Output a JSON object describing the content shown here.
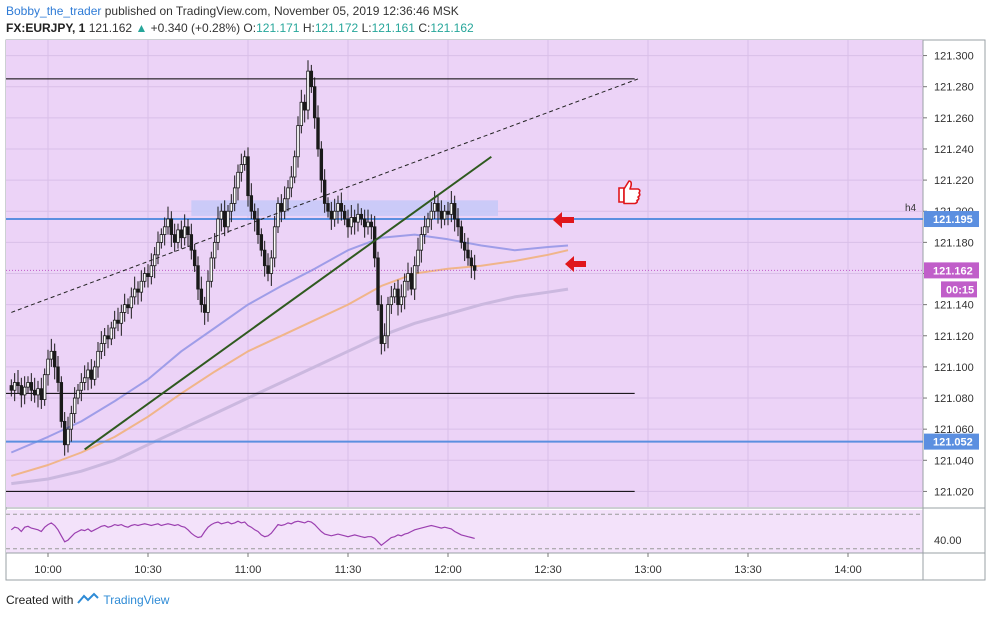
{
  "header": {
    "author": "Bobby_the_trader",
    "published": "published on TradingView.com, November 05, 2019 12:36:46 MSK",
    "symbol": "FX:EURJPY, 1",
    "last": "121.162",
    "change": "+0.340 (+0.28%)",
    "o_label": "O:",
    "o_value": "121.171",
    "h_label": "H:",
    "h_value": "121.172",
    "l_label": "L:",
    "l_value": "121.161",
    "c_label": "C:",
    "c_value": "121.162"
  },
  "footer": {
    "created": "Created with",
    "brand": "TradingView"
  },
  "colors": {
    "chart_bg": "#ecd3f7",
    "osc_bg": "#f3e2fa",
    "blue_line": "#5b8fe0",
    "zone": "#c6c8f8",
    "ma_fast": "#9f9de8",
    "ma_mid": "#f0b58a",
    "ma_slow": "#cbb8df",
    "osc": "#9b3fb0",
    "price_tag": "#c05ec9",
    "candle": "#1a1a1a",
    "arrow": "#e0161b"
  },
  "chart_data": {
    "type": "candlestick",
    "y_axis": {
      "min": 121.01,
      "max": 121.31,
      "ticks": [
        "121.020",
        "121.040",
        "121.060",
        "121.080",
        "121.100",
        "121.120",
        "121.140",
        "121.160",
        "121.180",
        "121.200",
        "121.220",
        "121.240",
        "121.260",
        "121.280",
        "121.300"
      ]
    },
    "x_axis": {
      "ticks": [
        "10:00",
        "10:30",
        "11:00",
        "11:30",
        "12:00",
        "12:30",
        "13:00",
        "13:30",
        "14:00"
      ]
    },
    "price_tags": [
      {
        "value": 121.195,
        "label": "121.195",
        "color": "#5b8fe0"
      },
      {
        "value": 121.162,
        "label": "121.162",
        "color": "#c05ec9"
      },
      {
        "value": 121.052,
        "label": "121.052",
        "color": "#5b8fe0"
      }
    ],
    "countdown": "00:15",
    "h4_label": "h4",
    "horizontal_levels": [
      {
        "value": 121.285,
        "color": "#000000"
      },
      {
        "value": 121.083,
        "color": "#000000"
      },
      {
        "value": 121.02,
        "color": "#000000"
      }
    ],
    "blue_levels": [
      121.195,
      121.052
    ],
    "current_price": 121.162,
    "zone": {
      "top": 121.207,
      "bottom": 121.197,
      "from": "10:43",
      "to": "12:15"
    },
    "trendline": {
      "from": [
        "10:11",
        121.047
      ],
      "to": [
        "12:13",
        121.235
      ]
    },
    "dashed_channel": {
      "from": [
        "09:49",
        121.135
      ],
      "to": [
        "12:57",
        121.285
      ]
    },
    "ma_fast": [
      121.045,
      121.055,
      121.065,
      121.078,
      121.092,
      121.11,
      121.125,
      121.14,
      121.152,
      121.163,
      121.175,
      121.183,
      121.185,
      121.182,
      121.178,
      121.175,
      121.177,
      121.178
    ],
    "ma_mid": [
      121.03,
      121.037,
      121.045,
      121.055,
      121.068,
      121.083,
      121.097,
      121.11,
      121.12,
      121.13,
      121.14,
      121.152,
      121.16,
      121.163,
      121.165,
      121.168,
      121.172,
      121.175
    ],
    "ma_slow": [
      121.025,
      121.028,
      121.033,
      121.04,
      121.05,
      121.06,
      121.07,
      121.08,
      121.09,
      121.1,
      121.11,
      121.12,
      121.128,
      121.134,
      121.14,
      121.145,
      121.148,
      121.15
    ],
    "ma_times": [
      "09:49",
      "10:00",
      "10:10",
      "10:20",
      "10:30",
      "10:40",
      "10:50",
      "11:00",
      "11:10",
      "11:20",
      "11:30",
      "11:40",
      "11:50",
      "12:00",
      "12:10",
      "12:20",
      "12:30",
      "12:36"
    ],
    "candles": {
      "start": "09:49",
      "interval_min": 1,
      "close": [
        121.085,
        121.09,
        121.088,
        121.082,
        121.087,
        121.09,
        121.085,
        121.082,
        121.086,
        121.079,
        121.095,
        121.105,
        121.11,
        121.1,
        121.09,
        121.065,
        121.05,
        121.06,
        121.07,
        121.08,
        121.085,
        121.09,
        121.093,
        121.098,
        121.092,
        121.1,
        121.11,
        121.115,
        121.12,
        121.118,
        121.125,
        121.13,
        121.128,
        121.135,
        121.14,
        121.138,
        121.145,
        121.15,
        121.148,
        121.155,
        121.16,
        121.158,
        121.165,
        121.172,
        121.18,
        121.185,
        121.19,
        121.195,
        121.185,
        121.18,
        121.188,
        121.183,
        121.19,
        121.185,
        121.175,
        121.165,
        121.15,
        121.14,
        121.135,
        121.155,
        121.17,
        121.18,
        121.195,
        121.2,
        121.19,
        121.2,
        121.205,
        121.215,
        121.225,
        121.23,
        121.235,
        121.21,
        121.2,
        121.195,
        121.185,
        121.175,
        121.165,
        121.16,
        121.17,
        121.19,
        121.205,
        121.2,
        121.208,
        121.215,
        121.222,
        121.235,
        121.255,
        121.27,
        121.265,
        121.29,
        121.28,
        121.26,
        121.24,
        121.22,
        121.205,
        121.2,
        121.195,
        121.2,
        121.205,
        121.2,
        121.195,
        121.19,
        121.196,
        121.193,
        121.198,
        121.195,
        121.19,
        121.193,
        121.19,
        121.17,
        121.14,
        121.115,
        121.12,
        121.14,
        121.145,
        121.15,
        121.14,
        121.145,
        121.155,
        121.16,
        121.15,
        121.165,
        121.175,
        121.185,
        121.19,
        121.195,
        121.2,
        121.205,
        121.2,
        121.195,
        121.2,
        121.198,
        121.205,
        121.195,
        121.19,
        121.18,
        121.175,
        121.17,
        121.165,
        121.162
      ],
      "note": "intraday candle series"
    },
    "oscillator": {
      "ticks": [
        "40.00"
      ],
      "values": [
        52,
        55,
        54,
        50,
        55,
        56,
        54,
        53,
        52,
        50,
        55,
        58,
        60,
        57,
        52,
        45,
        38,
        40,
        44,
        48,
        50,
        52,
        51,
        53,
        50,
        52,
        54,
        56,
        57,
        55,
        56,
        58,
        57,
        58,
        56,
        55,
        57,
        58,
        57,
        58,
        59,
        58,
        57,
        58,
        59,
        57,
        58,
        59,
        58,
        57,
        58,
        56,
        55,
        52,
        48,
        45,
        43,
        44,
        50,
        55,
        58,
        60,
        61,
        59,
        60,
        61,
        59,
        60,
        62,
        60,
        61,
        57,
        55,
        52,
        50,
        46,
        44,
        45,
        48,
        53,
        58,
        57,
        58,
        60,
        59,
        61,
        62,
        61,
        60,
        62,
        61,
        58,
        54,
        50,
        47,
        46,
        45,
        46,
        47,
        46,
        45,
        44,
        45,
        46,
        45,
        44,
        43,
        44,
        44,
        42,
        38,
        34,
        37,
        40,
        43,
        44,
        46,
        45,
        47,
        48,
        50,
        52,
        53,
        54,
        55,
        56,
        57,
        56,
        55,
        54,
        55,
        54,
        53,
        50,
        48,
        46,
        45,
        44,
        43,
        42
      ]
    }
  }
}
